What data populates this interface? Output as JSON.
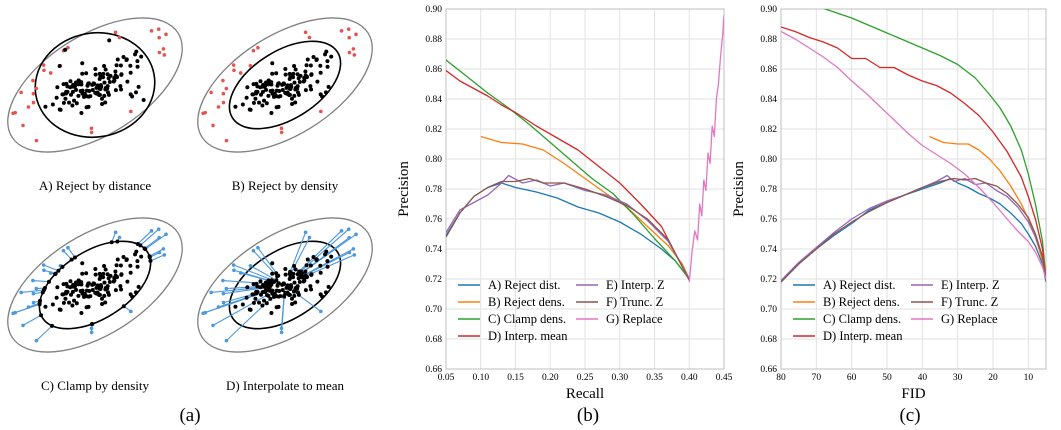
{
  "panel_a": {
    "label": "(a)",
    "subpanels": [
      {
        "caption": "A) Reject by distance",
        "mode": "distance"
      },
      {
        "caption": "B) Reject by density",
        "mode": "density"
      },
      {
        "caption": "C) Clamp by density",
        "mode": "clamp"
      },
      {
        "caption": "D) Interpolate to mean",
        "mode": "interp"
      }
    ],
    "colors": {
      "inlier": "#000000",
      "rejected": "#e8524f",
      "line": "#4a98dd",
      "outline": "#808080"
    }
  },
  "chart_data": [
    {
      "type": "line",
      "label": "(b)",
      "xlabel": "Recall",
      "ylabel": "Precision",
      "xlim": [
        0.05,
        0.45
      ],
      "ylim": [
        0.66,
        0.9
      ],
      "xticks": [
        "0.05",
        "0.10",
        "0.15",
        "0.20",
        "0.25",
        "0.30",
        "0.35",
        "0.40",
        "0.45"
      ],
      "yticks": [
        "0.66",
        "0.68",
        "0.70",
        "0.72",
        "0.74",
        "0.76",
        "0.78",
        "0.80",
        "0.82",
        "0.84",
        "0.86",
        "0.88",
        "0.90"
      ],
      "xtick_values": [
        0.05,
        0.1,
        0.15,
        0.2,
        0.25,
        0.3,
        0.35,
        0.4,
        0.45
      ],
      "ytick_values": [
        0.66,
        0.68,
        0.7,
        0.72,
        0.74,
        0.76,
        0.78,
        0.8,
        0.82,
        0.84,
        0.86,
        0.88,
        0.9
      ],
      "grid": true,
      "legend": [
        "A) Reject dist.",
        "B) Reject dens.",
        "C) Clamp dens.",
        "D) Interp. mean",
        "E) Interp. Z",
        "F) Trunc. Z",
        "G) Replace"
      ],
      "series": [
        {
          "name": "A) Reject dist.",
          "color": "#1f77b4",
          "x": [
            0.05,
            0.07,
            0.09,
            0.11,
            0.13,
            0.15,
            0.18,
            0.21,
            0.24,
            0.27,
            0.3,
            0.33,
            0.36,
            0.38,
            0.4
          ],
          "y": [
            0.749,
            0.764,
            0.775,
            0.781,
            0.784,
            0.781,
            0.778,
            0.774,
            0.768,
            0.764,
            0.758,
            0.75,
            0.74,
            0.732,
            0.72
          ]
        },
        {
          "name": "B) Reject dens.",
          "color": "#ff7f0e",
          "x": [
            0.1,
            0.13,
            0.16,
            0.19,
            0.22,
            0.25,
            0.28,
            0.31,
            0.34,
            0.37,
            0.39,
            0.4
          ],
          "y": [
            0.815,
            0.811,
            0.81,
            0.806,
            0.797,
            0.787,
            0.777,
            0.768,
            0.755,
            0.742,
            0.73,
            0.72
          ]
        },
        {
          "name": "C) Clamp dens.",
          "color": "#2ca02c",
          "x": [
            0.05,
            0.08,
            0.11,
            0.14,
            0.17,
            0.2,
            0.23,
            0.26,
            0.29,
            0.32,
            0.35,
            0.38,
            0.4
          ],
          "y": [
            0.866,
            0.855,
            0.844,
            0.834,
            0.823,
            0.811,
            0.799,
            0.787,
            0.777,
            0.763,
            0.747,
            0.732,
            0.72
          ]
        },
        {
          "name": "D) Interp. mean",
          "color": "#d62728",
          "x": [
            0.05,
            0.07,
            0.09,
            0.11,
            0.13,
            0.15,
            0.18,
            0.21,
            0.24,
            0.27,
            0.3,
            0.33,
            0.36,
            0.38,
            0.4
          ],
          "y": [
            0.859,
            0.852,
            0.847,
            0.842,
            0.836,
            0.831,
            0.822,
            0.814,
            0.806,
            0.795,
            0.784,
            0.77,
            0.755,
            0.737,
            0.72
          ]
        },
        {
          "name": "E) Interp. Z",
          "color": "#9467bd",
          "x": [
            0.05,
            0.07,
            0.09,
            0.11,
            0.13,
            0.14,
            0.16,
            0.18,
            0.2,
            0.22,
            0.25,
            0.28,
            0.31,
            0.34,
            0.37,
            0.4
          ],
          "y": [
            0.751,
            0.766,
            0.771,
            0.776,
            0.784,
            0.789,
            0.784,
            0.786,
            0.782,
            0.784,
            0.779,
            0.776,
            0.77,
            0.759,
            0.745,
            0.72
          ]
        },
        {
          "name": "F) Trunc. Z",
          "color": "#8c564b",
          "x": [
            0.05,
            0.07,
            0.09,
            0.11,
            0.13,
            0.15,
            0.17,
            0.19,
            0.22,
            0.25,
            0.28,
            0.31,
            0.34,
            0.37,
            0.4
          ],
          "y": [
            0.748,
            0.764,
            0.775,
            0.781,
            0.785,
            0.785,
            0.787,
            0.784,
            0.784,
            0.78,
            0.775,
            0.769,
            0.76,
            0.746,
            0.719
          ]
        },
        {
          "name": "G) Replace",
          "color": "#e377c2",
          "x": [
            0.4,
            0.404,
            0.408,
            0.412,
            0.415,
            0.418,
            0.421,
            0.424,
            0.427,
            0.43,
            0.433,
            0.436,
            0.439,
            0.442,
            0.445,
            0.448,
            0.45
          ],
          "y": [
            0.718,
            0.738,
            0.752,
            0.746,
            0.77,
            0.762,
            0.786,
            0.779,
            0.804,
            0.797,
            0.822,
            0.815,
            0.84,
            0.85,
            0.868,
            0.882,
            0.896
          ]
        }
      ]
    },
    {
      "type": "line",
      "label": "(c)",
      "xlabel": "FID",
      "ylabel": "Precision",
      "xlim": [
        80,
        5
      ],
      "ylim": [
        0.66,
        0.9
      ],
      "xticks": [
        "80",
        "70",
        "60",
        "50",
        "40",
        "30",
        "20",
        "10"
      ],
      "yticks": [
        "0.66",
        "0.68",
        "0.70",
        "0.72",
        "0.74",
        "0.76",
        "0.78",
        "0.80",
        "0.82",
        "0.84",
        "0.86",
        "0.88",
        "0.90"
      ],
      "xtick_values": [
        80,
        70,
        60,
        50,
        40,
        30,
        20,
        10
      ],
      "ytick_values": [
        0.66,
        0.68,
        0.7,
        0.72,
        0.74,
        0.76,
        0.78,
        0.8,
        0.82,
        0.84,
        0.86,
        0.88,
        0.9
      ],
      "grid": true,
      "legend": [
        "A) Reject dist.",
        "B) Reject dens.",
        "C) Clamp dens.",
        "D) Interp. mean",
        "E) Interp. Z",
        "F) Trunc. Z",
        "G) Replace"
      ],
      "series": [
        {
          "name": "A) Reject dist.",
          "color": "#1f77b4",
          "x": [
            80,
            75,
            70,
            65,
            60,
            55,
            50,
            45,
            40,
            35,
            32,
            30,
            27,
            24,
            21,
            18,
            15,
            12,
            10,
            8,
            6,
            5
          ],
          "y": [
            0.718,
            0.73,
            0.74,
            0.749,
            0.757,
            0.766,
            0.771,
            0.776,
            0.78,
            0.784,
            0.787,
            0.784,
            0.781,
            0.777,
            0.774,
            0.77,
            0.764,
            0.757,
            0.75,
            0.742,
            0.73,
            0.718
          ]
        },
        {
          "name": "B) Reject dens.",
          "color": "#ff7f0e",
          "x": [
            38,
            34,
            30,
            27,
            24,
            21,
            18,
            15,
            12,
            10,
            8,
            6,
            5
          ],
          "y": [
            0.815,
            0.811,
            0.81,
            0.81,
            0.806,
            0.8,
            0.792,
            0.782,
            0.77,
            0.76,
            0.748,
            0.732,
            0.72
          ]
        },
        {
          "name": "C) Clamp dens.",
          "color": "#2ca02c",
          "x": [
            70,
            65,
            60,
            55,
            50,
            45,
            40,
            35,
            30,
            25,
            21,
            18,
            15,
            12,
            10,
            8,
            6,
            5
          ],
          "y": [
            0.902,
            0.898,
            0.894,
            0.889,
            0.884,
            0.879,
            0.874,
            0.869,
            0.863,
            0.854,
            0.843,
            0.834,
            0.822,
            0.806,
            0.79,
            0.77,
            0.745,
            0.72
          ]
        },
        {
          "name": "D) Interp. mean",
          "color": "#d62728",
          "x": [
            80,
            76,
            72,
            68,
            64,
            60,
            56,
            52,
            48,
            44,
            40,
            36,
            32,
            28,
            24,
            20,
            16,
            12,
            10,
            8,
            6,
            5
          ],
          "y": [
            0.888,
            0.885,
            0.881,
            0.878,
            0.874,
            0.867,
            0.867,
            0.861,
            0.861,
            0.856,
            0.852,
            0.849,
            0.844,
            0.837,
            0.829,
            0.818,
            0.805,
            0.788,
            0.775,
            0.76,
            0.74,
            0.72
          ]
        },
        {
          "name": "E) Interp. Z",
          "color": "#9467bd",
          "x": [
            80,
            75,
            70,
            65,
            60,
            55,
            50,
            45,
            40,
            36,
            33,
            31,
            28,
            25,
            22,
            19,
            16,
            13,
            10,
            8,
            6,
            5
          ],
          "y": [
            0.719,
            0.731,
            0.741,
            0.751,
            0.76,
            0.767,
            0.772,
            0.776,
            0.781,
            0.785,
            0.789,
            0.785,
            0.787,
            0.783,
            0.784,
            0.779,
            0.775,
            0.768,
            0.758,
            0.748,
            0.735,
            0.72
          ]
        },
        {
          "name": "F) Trunc. Z",
          "color": "#8c564b",
          "x": [
            80,
            75,
            70,
            65,
            60,
            55,
            50,
            45,
            40,
            35,
            31,
            28,
            25,
            22,
            19,
            16,
            13,
            10,
            8,
            6,
            5
          ],
          "y": [
            0.718,
            0.73,
            0.74,
            0.75,
            0.758,
            0.765,
            0.771,
            0.776,
            0.781,
            0.785,
            0.787,
            0.786,
            0.787,
            0.784,
            0.782,
            0.777,
            0.77,
            0.761,
            0.75,
            0.735,
            0.719
          ]
        },
        {
          "name": "G) Replace",
          "color": "#e377c2",
          "x": [
            80,
            76,
            72,
            68,
            64,
            60,
            56,
            52,
            48,
            44,
            40,
            36,
            32,
            28,
            24,
            20,
            16,
            13,
            10,
            8,
            6,
            5
          ],
          "y": [
            0.885,
            0.88,
            0.874,
            0.868,
            0.861,
            0.852,
            0.844,
            0.835,
            0.826,
            0.817,
            0.809,
            0.803,
            0.797,
            0.79,
            0.781,
            0.771,
            0.76,
            0.752,
            0.745,
            0.738,
            0.728,
            0.72
          ]
        }
      ]
    }
  ]
}
